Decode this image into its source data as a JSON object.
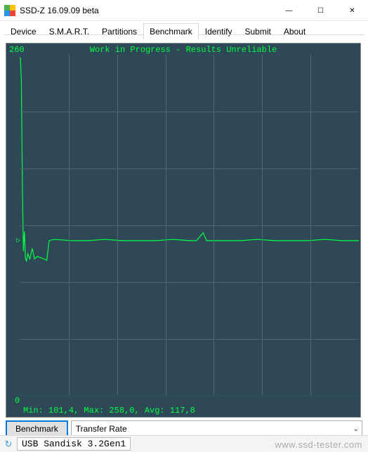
{
  "window": {
    "title": "SSD-Z 16.09.09 beta",
    "controls": {
      "min": "—",
      "max": "☐",
      "close": "✕"
    }
  },
  "tabs": [
    {
      "label": "Device"
    },
    {
      "label": "S.M.A.R.T."
    },
    {
      "label": "Partitions"
    },
    {
      "label": "Benchmark",
      "active": true
    },
    {
      "label": "Identify"
    },
    {
      "label": "Submit"
    },
    {
      "label": "About"
    }
  ],
  "chart": {
    "type": "line",
    "title": "Work in Progress - Results Unreliable",
    "ymax_label": "260",
    "ymin_label": "0",
    "stats_text": "Min: 101,4, Max: 258,0, Avg: 117,8",
    "ylim": [
      0,
      260
    ],
    "xlim": [
      0,
      100
    ],
    "background_color": "#2f4858",
    "line_color": "#00ff41",
    "text_color": "#00ff41",
    "grid_color": "#546472",
    "grid_v_count": 6,
    "grid_h_count": 5,
    "marker_y": 118,
    "marker_glyph": "▷",
    "series": [
      [
        0,
        258
      ],
      [
        0.3,
        240
      ],
      [
        0.6,
        160
      ],
      [
        0.9,
        110
      ],
      [
        1.2,
        125
      ],
      [
        1.5,
        105
      ],
      [
        1.8,
        102
      ],
      [
        2.2,
        108
      ],
      [
        2.8,
        104
      ],
      [
        3.5,
        112
      ],
      [
        4.2,
        104
      ],
      [
        5,
        106
      ],
      [
        6,
        105
      ],
      [
        7,
        104
      ],
      [
        7.8,
        103
      ],
      [
        8.5,
        118
      ],
      [
        10,
        119
      ],
      [
        15,
        118
      ],
      [
        20,
        118
      ],
      [
        25,
        119
      ],
      [
        30,
        118
      ],
      [
        35,
        118
      ],
      [
        40,
        118
      ],
      [
        45,
        119
      ],
      [
        50,
        118
      ],
      [
        52,
        118
      ],
      [
        54,
        124
      ],
      [
        55,
        118
      ],
      [
        60,
        118
      ],
      [
        65,
        118
      ],
      [
        70,
        119
      ],
      [
        75,
        118
      ],
      [
        80,
        118
      ],
      [
        85,
        118
      ],
      [
        90,
        119
      ],
      [
        95,
        118
      ],
      [
        100,
        118
      ]
    ]
  },
  "controls": {
    "benchmark_button": "Benchmark",
    "combo_value": "Transfer Rate"
  },
  "statusbar": {
    "icon_glyph": "↻",
    "device_text": "USB Sandisk 3.2Gen1"
  },
  "watermark": "www.ssd-tester.com"
}
